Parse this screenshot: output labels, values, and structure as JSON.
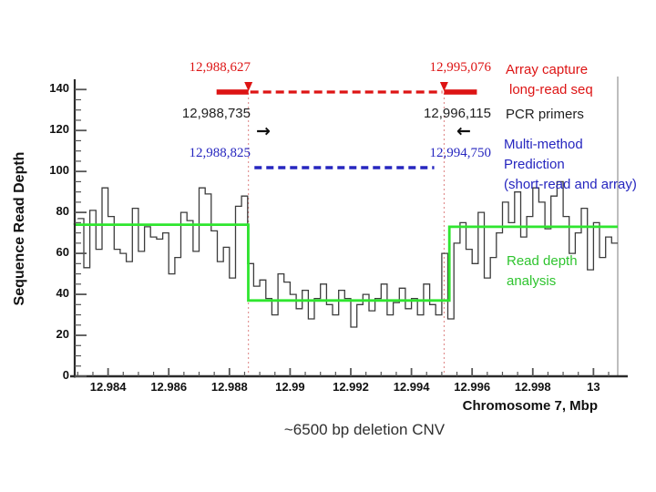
{
  "caption": "~6500 bp deletion CNV",
  "axes": {
    "y_label": "Sequence Read Depth",
    "x_label": "Chromosome 7, Mbp",
    "y_tick_labels": [
      "0",
      "20",
      "40",
      "60",
      "80",
      "100",
      "120",
      "140"
    ],
    "x_tick_labels": [
      "12.984",
      "12.986",
      "12.988",
      "12.99",
      "12.992",
      "12.994",
      "12.996",
      "12.998",
      "13"
    ]
  },
  "annotations": {
    "array_capture": {
      "start_label": "12,988,627",
      "end_label": "12,995,076",
      "start_mbp": 12.988627,
      "end_mbp": 12.995076,
      "legend": [
        "Array capture",
        "long-read seq"
      ],
      "color": "#dd1414"
    },
    "pcr_primers": {
      "start_label": "12,988,735",
      "end_label": "12,996,115",
      "start_mbp": 12.988735,
      "end_mbp": 12.996115,
      "legend": [
        "PCR primers"
      ],
      "arrow_right_icon": "→",
      "arrow_left_icon": "←",
      "color": "#1f1f1f"
    },
    "prediction": {
      "start_label": "12,988,825",
      "end_label": "12,994,750",
      "start_mbp": 12.988825,
      "end_mbp": 12.99475,
      "legend": [
        "Multi-method",
        "Prediction",
        "(short-read and array)"
      ],
      "color": "#2626bf"
    },
    "read_depth_fit": {
      "legend": [
        "Read depth",
        "analysis"
      ],
      "color": "#2fc42f"
    }
  },
  "chart_data": {
    "type": "bar",
    "title": "~6500 bp deletion CNV",
    "xlabel": "Chromosome 7, Mbp",
    "ylabel": "Sequence Read Depth",
    "xlim": [
      12.9829,
      13.0008
    ],
    "ylim": [
      0,
      145
    ],
    "x_ticks": [
      12.984,
      12.986,
      12.988,
      12.99,
      12.992,
      12.994,
      12.996,
      12.998,
      13
    ],
    "x_minor_step": 0.0005,
    "y_ticks": [
      0,
      20,
      40,
      60,
      80,
      100,
      120,
      140
    ],
    "y_minor_step": 5,
    "grid": false,
    "histogram": {
      "x_start": 12.983,
      "bin_width": 0.0002,
      "values": [
        77,
        53,
        81,
        62,
        92,
        78,
        62,
        60,
        56,
        82,
        61,
        73,
        68,
        67,
        70,
        50,
        58,
        80,
        76,
        61,
        92,
        89,
        71,
        56,
        63,
        48,
        83,
        88,
        55,
        44,
        47,
        38,
        30,
        50,
        46,
        40,
        33,
        42,
        28,
        38,
        45,
        35,
        30,
        42,
        38,
        24,
        35,
        40,
        32,
        38,
        45,
        30,
        36,
        43,
        33,
        38,
        30,
        45,
        35,
        30,
        60,
        28,
        65,
        75,
        62,
        55,
        80,
        48,
        58,
        70,
        85,
        75,
        90,
        68,
        78,
        92,
        85,
        72,
        88,
        95,
        78,
        60,
        70,
        82,
        52,
        75,
        58,
        68,
        65
      ]
    },
    "fit_segments": [
      {
        "x_start": 12.9829,
        "x_end": 12.98862,
        "level": 74
      },
      {
        "x_start": 12.98862,
        "x_end": 12.99525,
        "level": 37
      },
      {
        "x_start": 12.99525,
        "x_end": 13.0008,
        "level": 73
      }
    ],
    "guide_lines_mbp": [
      12.988627,
      12.995076
    ],
    "colors": {
      "histogram": "#3c3c3c",
      "fit": "#2fe62f",
      "guide": "#dd8080",
      "axis": "#2a2a2a",
      "tick": "#555555",
      "plot_border_right": "#a8a8a8"
    }
  }
}
